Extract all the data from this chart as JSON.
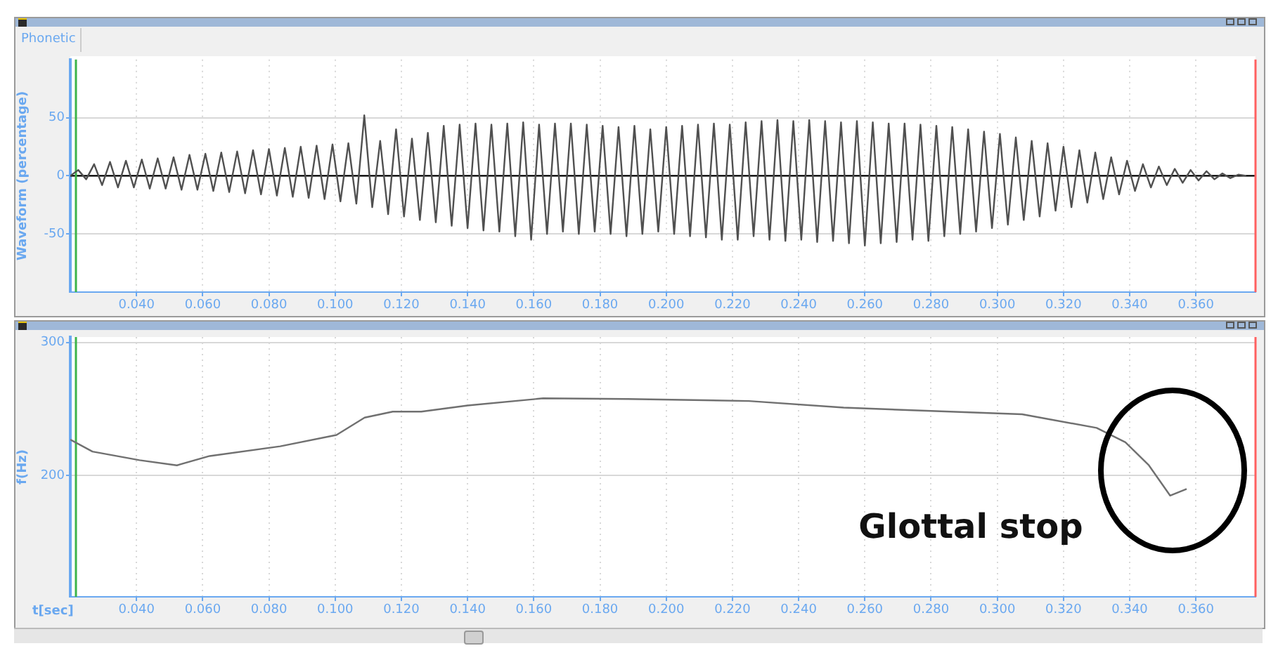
{
  "chart_data": [
    {
      "type": "line",
      "ylabel": "Waveform (percentage)",
      "annotations": [
        "Phonetic"
      ],
      "xlim": [
        0.02,
        0.378
      ],
      "ylim": [
        -100,
        100
      ],
      "xticks": [
        {
          "value": 0.04,
          "label": "0.040"
        },
        {
          "value": 0.06,
          "label": "0.060"
        },
        {
          "value": 0.08,
          "label": "0.080"
        },
        {
          "value": 0.1,
          "label": "0.100"
        },
        {
          "value": 0.12,
          "label": "0.120"
        },
        {
          "value": 0.14,
          "label": "0.140"
        },
        {
          "value": 0.16,
          "label": "0.160"
        },
        {
          "value": 0.18,
          "label": "0.180"
        },
        {
          "value": 0.2,
          "label": "0.200"
        },
        {
          "value": 0.22,
          "label": "0.220"
        },
        {
          "value": 0.24,
          "label": "0.240"
        },
        {
          "value": 0.26,
          "label": "0.260"
        },
        {
          "value": 0.28,
          "label": "0.280"
        },
        {
          "value": 0.3,
          "label": "0.300"
        },
        {
          "value": 0.32,
          "label": "0.320"
        },
        {
          "value": 0.34,
          "label": "0.340"
        },
        {
          "value": 0.36,
          "label": "0.360"
        }
      ],
      "yticks": [
        -50,
        0,
        50
      ],
      "grid": true,
      "legend": false,
      "marker": "none",
      "line_style": "solid",
      "ref_lines": [
        {
          "axis": "y",
          "value": 0,
          "label": null,
          "color": "#000000"
        },
        {
          "axis": "x",
          "value": 0.0217,
          "label": null,
          "color": "#3cb44b"
        },
        {
          "axis": "x",
          "value": 0.378,
          "label": null,
          "color": "#ff6060"
        }
      ],
      "series": [
        {
          "color": "#505050",
          "x": [
            0.02,
            0.0224,
            0.0248,
            0.0272,
            0.0296,
            0.032,
            0.0344,
            0.0368,
            0.0392,
            0.0416,
            0.044,
            0.0464,
            0.0488,
            0.0512,
            0.0536,
            0.056,
            0.0584,
            0.0608,
            0.0632,
            0.0656,
            0.068,
            0.0704,
            0.0728,
            0.0752,
            0.0776,
            0.08,
            0.0824,
            0.0848,
            0.0872,
            0.0896,
            0.092,
            0.0944,
            0.0968,
            0.0992,
            0.1016,
            0.104,
            0.1064,
            0.1088,
            0.1112,
            0.1136,
            0.116,
            0.1184,
            0.1208,
            0.1232,
            0.1256,
            0.128,
            0.1304,
            0.1328,
            0.1352,
            0.1376,
            0.14,
            0.1424,
            0.1448,
            0.1472,
            0.1496,
            0.152,
            0.1544,
            0.1568,
            0.1592,
            0.1616,
            0.164,
            0.1664,
            0.1688,
            0.1712,
            0.1736,
            0.176,
            0.1784,
            0.1808,
            0.1832,
            0.1856,
            0.188,
            0.1904,
            0.1928,
            0.1952,
            0.1976,
            0.2,
            0.2024,
            0.2048,
            0.2072,
            0.2096,
            0.212,
            0.2144,
            0.2168,
            0.2192,
            0.2216,
            0.224,
            0.2264,
            0.2288,
            0.2312,
            0.2336,
            0.236,
            0.2384,
            0.2408,
            0.2432,
            0.2456,
            0.248,
            0.2504,
            0.2528,
            0.2552,
            0.2576,
            0.26,
            0.2624,
            0.2648,
            0.2672,
            0.2696,
            0.272,
            0.2744,
            0.2768,
            0.2792,
            0.2816,
            0.284,
            0.2864,
            0.2888,
            0.2912,
            0.2936,
            0.296,
            0.2984,
            0.3008,
            0.3032,
            0.3056,
            0.308,
            0.3104,
            0.3128,
            0.3152,
            0.3176,
            0.32,
            0.3224,
            0.3248,
            0.3272,
            0.3296,
            0.332,
            0.3344,
            0.3368,
            0.3392,
            0.3416,
            0.344,
            0.3464,
            0.3488,
            0.3512,
            0.3536,
            0.356,
            0.3584,
            0.3608,
            0.3632,
            0.3656,
            0.368,
            0.3704,
            0.3728,
            0.3752
          ],
          "values": [
            0,
            5,
            -3,
            10,
            -8,
            12,
            -10,
            13,
            -10,
            14,
            -11,
            15,
            -11,
            16,
            -12,
            18,
            -12,
            19,
            -13,
            20,
            -14,
            21,
            -15,
            22,
            -16,
            23,
            -17,
            24,
            -18,
            25,
            -19,
            26,
            -20,
            27,
            -22,
            28,
            -24,
            52,
            -27,
            30,
            -33,
            40,
            -35,
            32,
            -38,
            37,
            -40,
            43,
            -43,
            44,
            -45,
            45,
            -47,
            44,
            -48,
            45,
            -52,
            46,
            -55,
            44,
            -50,
            45,
            -48,
            45,
            -50,
            44,
            -48,
            43,
            -50,
            42,
            -52,
            43,
            -50,
            40,
            -48,
            42,
            -50,
            43,
            -52,
            44,
            -53,
            45,
            -55,
            44,
            -55,
            46,
            -52,
            47,
            -55,
            48,
            -56,
            47,
            -55,
            48,
            -57,
            47,
            -56,
            46,
            -58,
            47,
            -60,
            46,
            -58,
            45,
            -57,
            45,
            -55,
            44,
            -56,
            43,
            -52,
            42,
            -50,
            40,
            -48,
            38,
            -45,
            36,
            -42,
            33,
            -38,
            30,
            -35,
            28,
            -30,
            25,
            -27,
            22,
            -23,
            20,
            -20,
            16,
            -16,
            13,
            -13,
            10,
            -10,
            8,
            -8,
            6,
            -6,
            5,
            -4,
            4,
            -3,
            2,
            -2,
            1,
            0
          ]
        }
      ]
    },
    {
      "type": "line",
      "xlabel": "t[sec]",
      "ylabel": "f(Hz)",
      "annotations": [
        {
          "text": "Glottal stop",
          "x": 0.3522,
          "y": 185
        }
      ],
      "xlim": [
        0.02,
        0.378
      ],
      "ylim": [
        109,
        304
      ],
      "xticks": [
        {
          "value": 0.04,
          "label": "0.040"
        },
        {
          "value": 0.06,
          "label": "0.060"
        },
        {
          "value": 0.08,
          "label": "0.080"
        },
        {
          "value": 0.1,
          "label": "0.100"
        },
        {
          "value": 0.12,
          "label": "0.120"
        },
        {
          "value": 0.14,
          "label": "0.140"
        },
        {
          "value": 0.16,
          "label": "0.160"
        },
        {
          "value": 0.18,
          "label": "0.180"
        },
        {
          "value": 0.2,
          "label": "0.200"
        },
        {
          "value": 0.22,
          "label": "0.220"
        },
        {
          "value": 0.24,
          "label": "0.240"
        },
        {
          "value": 0.26,
          "label": "0.260"
        },
        {
          "value": 0.28,
          "label": "0.280"
        },
        {
          "value": 0.3,
          "label": "0.300"
        },
        {
          "value": 0.32,
          "label": "0.320"
        },
        {
          "value": 0.34,
          "label": "0.340"
        },
        {
          "value": 0.36,
          "label": "0.360"
        }
      ],
      "yticks": [
        200,
        300
      ],
      "grid": true,
      "legend": false,
      "marker": "none",
      "line_style": "solid",
      "ref_lines": [
        {
          "axis": "x",
          "value": 0.0217,
          "label": null,
          "color": "#3cb44b"
        },
        {
          "axis": "x",
          "value": 0.378,
          "label": null,
          "color": "#ff6060"
        }
      ],
      "series": [
        {
          "color": "#707070",
          "x": [
            0.02,
            0.0267,
            0.0409,
            0.0522,
            0.0621,
            0.0834,
            0.1004,
            0.1089,
            0.1174,
            0.126,
            0.14,
            0.1628,
            0.1884,
            0.225,
            0.2536,
            0.3075,
            0.33,
            0.3387,
            0.3458,
            0.3522,
            0.3572
          ],
          "values": [
            227,
            218,
            211.6,
            207.7,
            214.7,
            222,
            230.5,
            243.5,
            248,
            248,
            252.6,
            258,
            257.5,
            256,
            251,
            246,
            235.8,
            225,
            207.7,
            185,
            190
          ]
        }
      ]
    }
  ]
}
